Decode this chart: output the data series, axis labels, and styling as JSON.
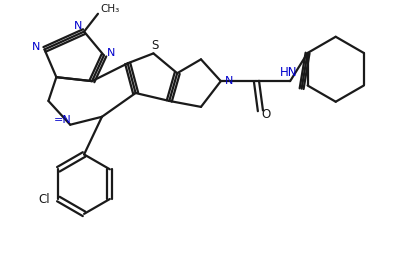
{
  "background_color": "#ffffff",
  "line_color": "#1a1a1a",
  "nitrogen_color": "#0000cc",
  "sulfur_color": "#1a1a1a",
  "line_width": 1.6,
  "figsize": [
    3.98,
    2.74
  ],
  "dpi": 100,
  "xlim": [
    0,
    10
  ],
  "ylim": [
    0,
    6.88
  ]
}
